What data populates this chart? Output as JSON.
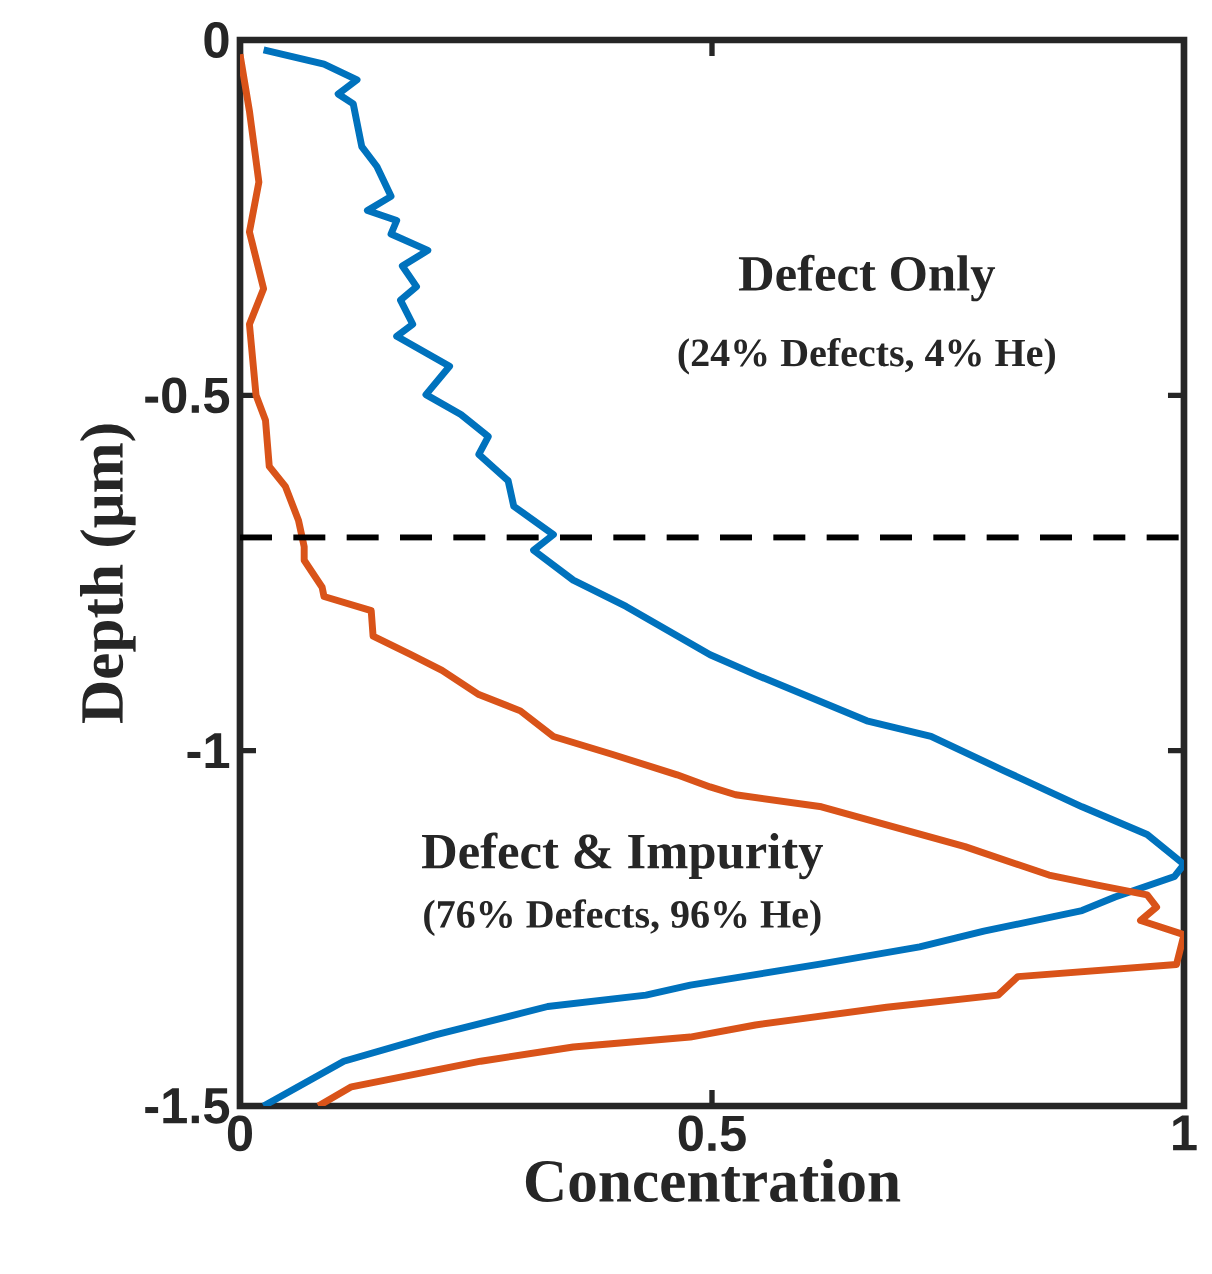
{
  "chart_data": {
    "type": "line",
    "xlabel": "Concentration",
    "ylabel": "Depth (μm)",
    "xlim": [
      0,
      1
    ],
    "ylim": [
      -1.5,
      0
    ],
    "xticks": [
      0,
      0.5,
      1
    ],
    "yticks": [
      0,
      -0.5,
      -1,
      -1.5
    ],
    "line_style": "solid",
    "marker": "none",
    "annotations": [
      "Defect Only",
      "(24% Defects, 4% He)",
      "Defect & Impurity",
      "(76% Defects, 96% He)"
    ],
    "ref_lines": [
      {
        "axis": "y",
        "value": -0.7,
        "color": "#000000",
        "line_style": "dashed"
      }
    ],
    "series": [
      {
        "color": "#0072bd",
        "x": [
          0.025,
          0.089,
          0.124,
          0.104,
          0.12,
          0.129,
          0.145,
          0.16,
          0.135,
          0.166,
          0.16,
          0.199,
          0.172,
          0.187,
          0.17,
          0.183,
          0.166,
          0.222,
          0.197,
          0.234,
          0.263,
          0.253,
          0.284,
          0.29,
          0.332,
          0.311,
          0.353,
          0.409,
          0.498,
          0.546,
          0.664,
          0.732,
          0.809,
          0.892,
          0.961,
          1.0,
          0.99,
          0.927,
          0.892,
          0.788,
          0.72,
          0.616,
          0.477,
          0.43,
          0.326,
          0.207,
          0.11,
          0.025
        ],
        "values": [
          -0.014,
          -0.034,
          -0.056,
          -0.076,
          -0.09,
          -0.15,
          -0.178,
          -0.22,
          -0.24,
          -0.254,
          -0.273,
          -0.296,
          -0.318,
          -0.347,
          -0.366,
          -0.4,
          -0.417,
          -0.459,
          -0.499,
          -0.527,
          -0.558,
          -0.583,
          -0.62,
          -0.656,
          -0.696,
          -0.718,
          -0.76,
          -0.797,
          -0.865,
          -0.893,
          -0.958,
          -0.98,
          -1.028,
          -1.079,
          -1.118,
          -1.16,
          -1.177,
          -1.206,
          -1.225,
          -1.254,
          -1.276,
          -1.3,
          -1.33,
          -1.344,
          -1.36,
          -1.4,
          -1.437,
          -1.5
        ]
      },
      {
        "color": "#d95319",
        "x": [
          0.0,
          0.01,
          0.02,
          0.01,
          0.025,
          0.01,
          0.017,
          0.027,
          0.031,
          0.048,
          0.062,
          0.068,
          0.068,
          0.087,
          0.089,
          0.139,
          0.141,
          0.18,
          0.214,
          0.253,
          0.297,
          0.332,
          0.394,
          0.463,
          0.498,
          0.525,
          0.616,
          0.768,
          0.857,
          0.907,
          0.961,
          0.971,
          0.954,
          1.0,
          0.992,
          0.824,
          0.803,
          0.685,
          0.546,
          0.477,
          0.353,
          0.255,
          0.118,
          0.083
        ],
        "values": [
          -0.02,
          -0.1,
          -0.2,
          -0.27,
          -0.35,
          -0.4,
          -0.5,
          -0.535,
          -0.6,
          -0.628,
          -0.676,
          -0.713,
          -0.732,
          -0.77,
          -0.783,
          -0.803,
          -0.839,
          -0.864,
          -0.887,
          -0.921,
          -0.944,
          -0.98,
          -1.005,
          -1.034,
          -1.051,
          -1.062,
          -1.079,
          -1.135,
          -1.175,
          -1.189,
          -1.203,
          -1.22,
          -1.239,
          -1.259,
          -1.301,
          -1.318,
          -1.344,
          -1.361,
          -1.386,
          -1.403,
          -1.417,
          -1.437,
          -1.473,
          -1.5
        ]
      }
    ]
  }
}
